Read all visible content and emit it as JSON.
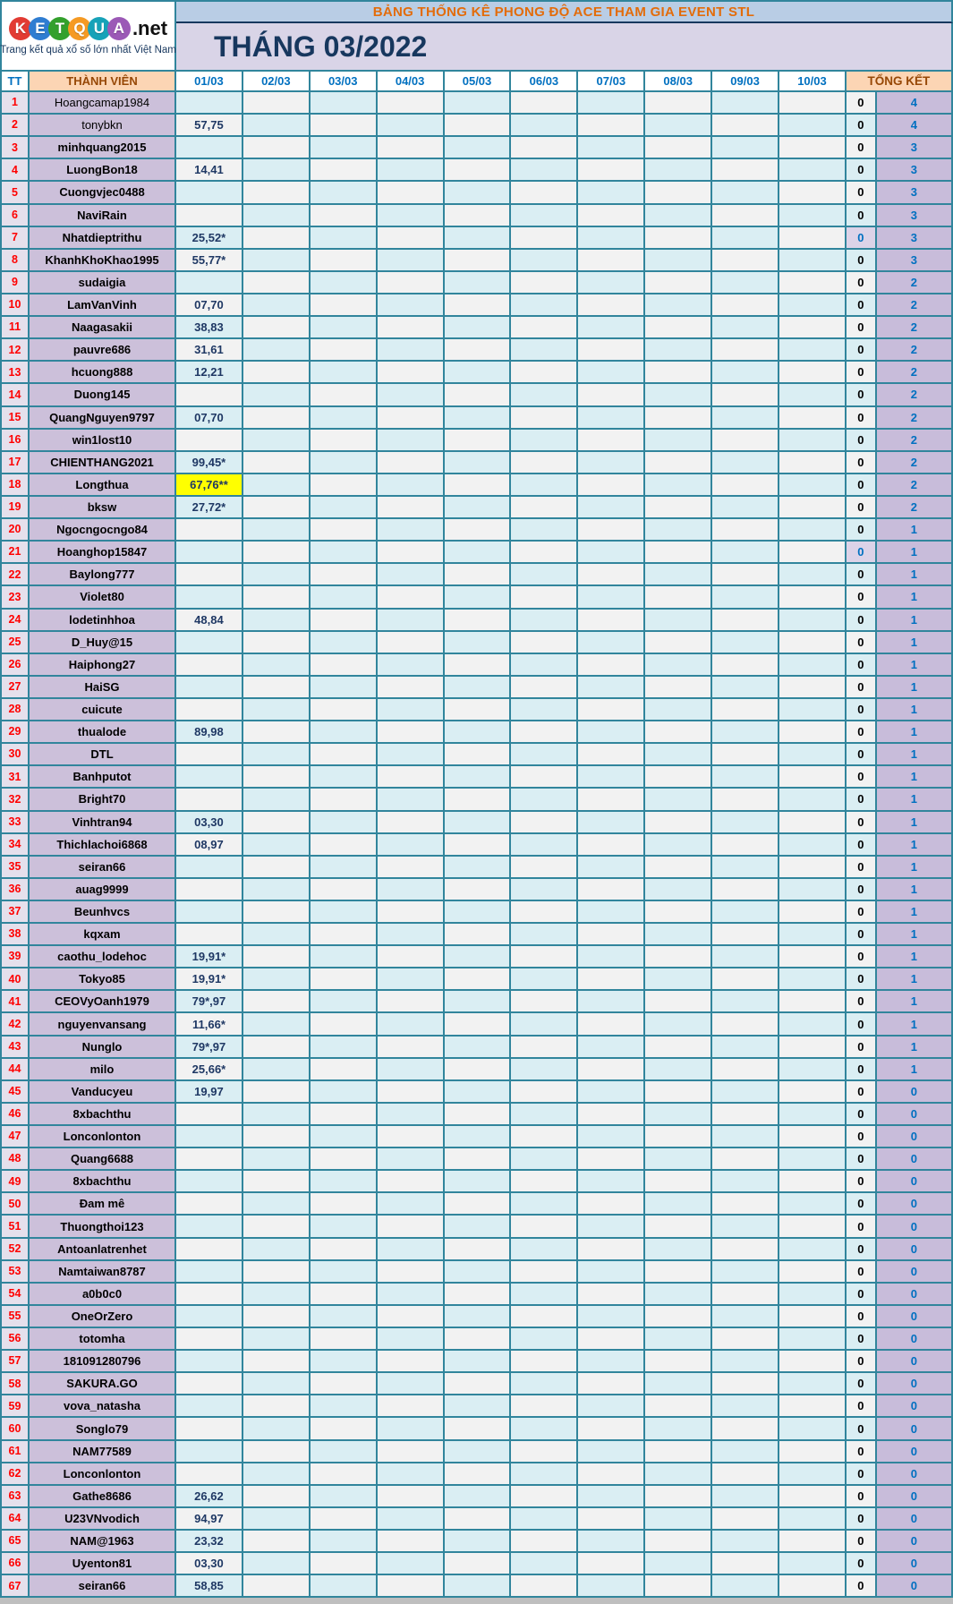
{
  "logo": {
    "letters": [
      {
        "ch": "K",
        "color": "#E23B33"
      },
      {
        "ch": "E",
        "color": "#2F7DD1"
      },
      {
        "ch": "T",
        "color": "#33A02C"
      },
      {
        "ch": "Q",
        "color": "#F59A23"
      },
      {
        "ch": "U",
        "color": "#17A2B8"
      },
      {
        "ch": "A",
        "color": "#9B59B6"
      }
    ],
    "suffix": ".net",
    "tagline": "Trang kết quả xổ số lớn nhất Việt Nam"
  },
  "header": {
    "title": "BẢNG THỐNG KÊ PHONG ĐỘ ACE THAM GIA EVENT STL",
    "month": "THÁNG 03/2022"
  },
  "columns": {
    "tt": "TT",
    "member": "THÀNH VIÊN",
    "dates": [
      "01/03",
      "02/03",
      "03/03",
      "04/03",
      "05/03",
      "06/03",
      "07/03",
      "08/03",
      "09/03",
      "10/03"
    ],
    "total": "TỔNG KẾT"
  },
  "colors": {
    "grid_border": "#31859C",
    "title_text": "#E36C0A",
    "title_bg": "#B9CDE5",
    "month_text": "#17375E",
    "month_bg": "#D9D4E7",
    "header_blue": "#0070C0",
    "header_peach_bg": "#FCD5B4",
    "header_brown": "#974806",
    "tt_red": "#FF0000",
    "member_bg": "#CCC0DA",
    "value_navy": "#1F3864",
    "value_red": "#FF0000",
    "highlight_yellow": "#FFFF00",
    "cell_cyan": "#DAEEF3",
    "cell_gray": "#F2F2F2",
    "count_bg": "#C8BCDA"
  },
  "rows": [
    {
      "tt": "1",
      "name": "Hoangcamap1984",
      "nc": "gray",
      "v": "",
      "vc": "",
      "hl": false,
      "zero": "0",
      "zs": "",
      "total": "4"
    },
    {
      "tt": "2",
      "name": "tonybkn",
      "nc": "gray",
      "v": "57,75",
      "vc": "navy",
      "hl": false,
      "zero": "0",
      "zs": "",
      "total": "4"
    },
    {
      "tt": "3",
      "name": "minhquang2015",
      "nc": "black",
      "v": "",
      "vc": "",
      "hl": false,
      "zero": "0",
      "zs": "",
      "total": "3"
    },
    {
      "tt": "4",
      "name": "LuongBon18",
      "nc": "black",
      "v": "14,41",
      "vc": "navy",
      "hl": false,
      "zero": "0",
      "zs": "",
      "total": "3"
    },
    {
      "tt": "5",
      "name": "Cuongvjec0488",
      "nc": "brown",
      "v": "",
      "vc": "",
      "hl": false,
      "zero": "0",
      "zs": "",
      "total": "3"
    },
    {
      "tt": "6",
      "name": "NaviRain",
      "nc": "black",
      "v": "",
      "vc": "",
      "hl": false,
      "zero": "0",
      "zs": "",
      "total": "3"
    },
    {
      "tt": "7",
      "name": "Nhatdieptrithu",
      "nc": "brown",
      "v": "25,52*",
      "vc": "red",
      "hl": false,
      "zero": "0",
      "zs": "lav",
      "total": "3"
    },
    {
      "tt": "8",
      "name": "KhanhKhoKhao1995",
      "nc": "brown",
      "v": "55,77*",
      "vc": "red",
      "hl": false,
      "zero": "0",
      "zs": "",
      "total": "3"
    },
    {
      "tt": "9",
      "name": "sudaigia",
      "nc": "brown",
      "v": "",
      "vc": "",
      "hl": false,
      "zero": "0",
      "zs": "",
      "total": "2"
    },
    {
      "tt": "10",
      "name": "LamVanVinh",
      "nc": "black",
      "v": "07,70",
      "vc": "navy",
      "hl": false,
      "zero": "0",
      "zs": "",
      "total": "2"
    },
    {
      "tt": "11",
      "name": "Naagasakii",
      "nc": "black",
      "v": "38,83",
      "vc": "navy",
      "hl": false,
      "zero": "0",
      "zs": "",
      "total": "2"
    },
    {
      "tt": "12",
      "name": "pauvre686",
      "nc": "black",
      "v": "31,61",
      "vc": "navy",
      "hl": false,
      "zero": "0",
      "zs": "",
      "total": "2"
    },
    {
      "tt": "13",
      "name": "hcuong888",
      "nc": "black",
      "v": "12,21",
      "vc": "navy",
      "hl": false,
      "zero": "0",
      "zs": "",
      "total": "2"
    },
    {
      "tt": "14",
      "name": "Duong145",
      "nc": "brown",
      "v": "",
      "vc": "",
      "hl": false,
      "zero": "0",
      "zs": "",
      "total": "2"
    },
    {
      "tt": "15",
      "name": "QuangNguyen9797",
      "nc": "black",
      "v": "07,70",
      "vc": "navy",
      "hl": false,
      "zero": "0",
      "zs": "",
      "total": "2"
    },
    {
      "tt": "16",
      "name": "win1lost10",
      "nc": "blue",
      "v": "",
      "vc": "",
      "hl": false,
      "zero": "0",
      "zs": "",
      "total": "2"
    },
    {
      "tt": "17",
      "name": "CHIENTHANG2021",
      "nc": "blue",
      "v": "99,45*",
      "vc": "red",
      "hl": false,
      "zero": "0",
      "zs": "",
      "total": "2"
    },
    {
      "tt": "18",
      "name": "Longthua",
      "nc": "brown",
      "v": "67,76**",
      "vc": "red",
      "hl": true,
      "zero": "0",
      "zs": "",
      "total": "2"
    },
    {
      "tt": "19",
      "name": "bksw",
      "nc": "black",
      "v": "27,72*",
      "vc": "red",
      "hl": false,
      "zero": "0",
      "zs": "",
      "total": "2"
    },
    {
      "tt": "20",
      "name": "Ngocngocngo84",
      "nc": "black",
      "v": "",
      "vc": "",
      "hl": false,
      "zero": "0",
      "zs": "",
      "total": "1"
    },
    {
      "tt": "21",
      "name": "Hoanghop15847",
      "nc": "brown",
      "v": "",
      "vc": "",
      "hl": false,
      "zero": "0",
      "zs": "lav",
      "total": "1"
    },
    {
      "tt": "22",
      "name": "Baylong777",
      "nc": "black",
      "v": "",
      "vc": "",
      "hl": false,
      "zero": "0",
      "zs": "",
      "total": "1"
    },
    {
      "tt": "23",
      "name": "Violet80",
      "nc": "black",
      "v": "",
      "vc": "",
      "hl": false,
      "zero": "0",
      "zs": "",
      "total": "1"
    },
    {
      "tt": "24",
      "name": "lodetinhhoa",
      "nc": "black",
      "v": "48,84",
      "vc": "navy",
      "hl": false,
      "zero": "0",
      "zs": "",
      "total": "1"
    },
    {
      "tt": "25",
      "name": "D_Huy@15",
      "nc": "brown",
      "v": "",
      "vc": "",
      "hl": false,
      "zero": "0",
      "zs": "",
      "total": "1"
    },
    {
      "tt": "26",
      "name": "Haiphong27",
      "nc": "brown",
      "v": "",
      "vc": "",
      "hl": false,
      "zero": "0",
      "zs": "",
      "total": "1"
    },
    {
      "tt": "27",
      "name": "HaiSG",
      "nc": "black",
      "v": "",
      "vc": "",
      "hl": false,
      "zero": "0",
      "zs": "",
      "total": "1"
    },
    {
      "tt": "28",
      "name": "cuicute",
      "nc": "brown",
      "v": "",
      "vc": "",
      "hl": false,
      "zero": "0",
      "zs": "",
      "total": "1"
    },
    {
      "tt": "29",
      "name": "thualode",
      "nc": "brown",
      "v": "89,98",
      "vc": "navy",
      "hl": false,
      "zero": "0",
      "zs": "",
      "total": "1"
    },
    {
      "tt": "30",
      "name": "DTL",
      "nc": "black",
      "v": "",
      "vc": "",
      "hl": false,
      "zero": "0",
      "zs": "",
      "total": "1"
    },
    {
      "tt": "31",
      "name": "Banhputot",
      "nc": "brown",
      "v": "",
      "vc": "",
      "hl": false,
      "zero": "0",
      "zs": "",
      "total": "1"
    },
    {
      "tt": "32",
      "name": "Bright70",
      "nc": "brown",
      "v": "",
      "vc": "",
      "hl": false,
      "zero": "0",
      "zs": "",
      "total": "1"
    },
    {
      "tt": "33",
      "name": "Vinhtran94",
      "nc": "brown",
      "v": "03,30",
      "vc": "navy",
      "hl": false,
      "zero": "0",
      "zs": "",
      "total": "1"
    },
    {
      "tt": "34",
      "name": "Thichlachoi6868",
      "nc": "brown",
      "v": "08,97",
      "vc": "navy",
      "hl": false,
      "zero": "0",
      "zs": "",
      "total": "1"
    },
    {
      "tt": "35",
      "name": "seiran66",
      "nc": "brown",
      "v": "",
      "vc": "",
      "hl": false,
      "zero": "0",
      "zs": "",
      "total": "1"
    },
    {
      "tt": "36",
      "name": "auag9999",
      "nc": "brown",
      "v": "",
      "vc": "",
      "hl": false,
      "zero": "0",
      "zs": "",
      "total": "1"
    },
    {
      "tt": "37",
      "name": "Beunhvcs",
      "nc": "brown",
      "v": "",
      "vc": "",
      "hl": false,
      "zero": "0",
      "zs": "",
      "total": "1"
    },
    {
      "tt": "38",
      "name": "kqxam",
      "nc": "brown",
      "v": "",
      "vc": "",
      "hl": false,
      "zero": "0",
      "zs": "",
      "total": "1"
    },
    {
      "tt": "39",
      "name": "caothu_lodehoc",
      "nc": "brown",
      "v": "19,91*",
      "vc": "red",
      "hl": false,
      "zero": "0",
      "zs": "",
      "total": "1"
    },
    {
      "tt": "40",
      "name": "Tokyo85",
      "nc": "brown",
      "v": "19,91*",
      "vc": "red",
      "hl": false,
      "zero": "0",
      "zs": "",
      "total": "1"
    },
    {
      "tt": "41",
      "name": "CEOVyOanh1979",
      "nc": "blue",
      "v": "79*,97",
      "vc": "red",
      "hl": false,
      "zero": "0",
      "zs": "",
      "total": "1"
    },
    {
      "tt": "42",
      "name": "nguyenvansang",
      "nc": "brown",
      "v": "11,66*",
      "vc": "red",
      "hl": false,
      "zero": "0",
      "zs": "",
      "total": "1"
    },
    {
      "tt": "43",
      "name": "Nunglo",
      "nc": "brown",
      "v": "79*,97",
      "vc": "red",
      "hl": false,
      "zero": "0",
      "zs": "",
      "total": "1"
    },
    {
      "tt": "44",
      "name": "milo",
      "nc": "brown",
      "v": "25,66*",
      "vc": "red",
      "hl": false,
      "zero": "0",
      "zs": "",
      "total": "1"
    },
    {
      "tt": "45",
      "name": "Vanducyeu",
      "nc": "brown",
      "v": "19,97",
      "vc": "navy",
      "hl": false,
      "zero": "0",
      "zs": "",
      "total": "0"
    },
    {
      "tt": "46",
      "name": "8xbachthu",
      "nc": "brown",
      "v": "",
      "vc": "",
      "hl": false,
      "zero": "0",
      "zs": "",
      "total": "0"
    },
    {
      "tt": "47",
      "name": "Lonconlonton",
      "nc": "brown",
      "v": "",
      "vc": "",
      "hl": false,
      "zero": "0",
      "zs": "",
      "total": "0"
    },
    {
      "tt": "48",
      "name": "Quang6688",
      "nc": "brown",
      "v": "",
      "vc": "",
      "hl": false,
      "zero": "0",
      "zs": "",
      "total": "0"
    },
    {
      "tt": "49",
      "name": "8xbachthu",
      "nc": "brown",
      "v": "",
      "vc": "",
      "hl": false,
      "zero": "0",
      "zs": "",
      "total": "0"
    },
    {
      "tt": "50",
      "name": "Đam mê",
      "nc": "black",
      "v": "",
      "vc": "",
      "hl": false,
      "zero": "0",
      "zs": "",
      "total": "0"
    },
    {
      "tt": "51",
      "name": "Thuongthoi123",
      "nc": "brown",
      "v": "",
      "vc": "",
      "hl": false,
      "zero": "0",
      "zs": "",
      "total": "0"
    },
    {
      "tt": "52",
      "name": "Antoanlatrenhet",
      "nc": "brown",
      "v": "",
      "vc": "",
      "hl": false,
      "zero": "0",
      "zs": "",
      "total": "0"
    },
    {
      "tt": "53",
      "name": "Namtaiwan8787",
      "nc": "black",
      "v": "",
      "vc": "",
      "hl": false,
      "zero": "0",
      "zs": "",
      "total": "0"
    },
    {
      "tt": "54",
      "name": "a0b0c0",
      "nc": "brown",
      "v": "",
      "vc": "",
      "hl": false,
      "zero": "0",
      "zs": "",
      "total": "0"
    },
    {
      "tt": "55",
      "name": "OneOrZero",
      "nc": "blue",
      "v": "",
      "vc": "",
      "hl": false,
      "zero": "0",
      "zs": "",
      "total": "0"
    },
    {
      "tt": "56",
      "name": "totomha",
      "nc": "brown",
      "v": "",
      "vc": "",
      "hl": false,
      "zero": "0",
      "zs": "",
      "total": "0"
    },
    {
      "tt": "57",
      "name": "181091280796",
      "nc": "brown",
      "v": "",
      "vc": "",
      "hl": false,
      "zero": "0",
      "zs": "",
      "total": "0"
    },
    {
      "tt": "58",
      "name": "SAKURA.GO",
      "nc": "black",
      "v": "",
      "vc": "",
      "hl": false,
      "zero": "0",
      "zs": "",
      "total": "0"
    },
    {
      "tt": "59",
      "name": "vova_natasha",
      "nc": "brown",
      "v": "",
      "vc": "",
      "hl": false,
      "zero": "0",
      "zs": "",
      "total": "0"
    },
    {
      "tt": "60",
      "name": "Songlo79",
      "nc": "brown",
      "v": "",
      "vc": "",
      "hl": false,
      "zero": "0",
      "zs": "",
      "total": "0"
    },
    {
      "tt": "61",
      "name": "NAM77589",
      "nc": "brown",
      "v": "",
      "vc": "",
      "hl": false,
      "zero": "0",
      "zs": "",
      "total": "0"
    },
    {
      "tt": "62",
      "name": "Lonconlonton",
      "nc": "brown",
      "v": "",
      "vc": "",
      "hl": false,
      "zero": "0",
      "zs": "",
      "total": "0"
    },
    {
      "tt": "63",
      "name": "Gathe8686",
      "nc": "brown",
      "v": "26,62",
      "vc": "navy",
      "hl": false,
      "zero": "0",
      "zs": "",
      "total": "0"
    },
    {
      "tt": "64",
      "name": "U23VNvodich",
      "nc": "brown",
      "v": "94,97",
      "vc": "navy",
      "hl": false,
      "zero": "0",
      "zs": "",
      "total": "0"
    },
    {
      "tt": "65",
      "name": "NAM@1963",
      "nc": "brown",
      "v": "23,32",
      "vc": "navy",
      "hl": false,
      "zero": "0",
      "zs": "",
      "total": "0"
    },
    {
      "tt": "66",
      "name": "Uyenton81",
      "nc": "black",
      "v": "03,30",
      "vc": "navy",
      "hl": false,
      "zero": "0",
      "zs": "",
      "total": "0"
    },
    {
      "tt": "67",
      "name": "seiran66",
      "nc": "brown",
      "v": "58,85",
      "vc": "navy",
      "hl": false,
      "zero": "0",
      "zs": "",
      "total": "0"
    }
  ]
}
